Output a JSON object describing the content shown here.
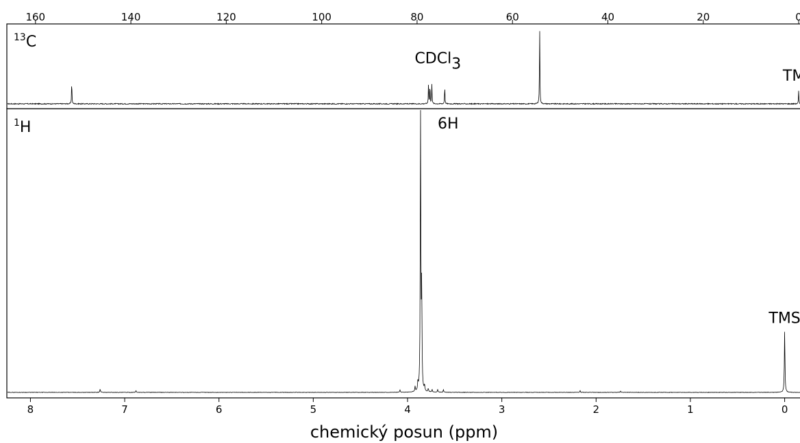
{
  "chart_data": [
    {
      "type": "line",
      "panel": "13C NMR",
      "nucleus_label": {
        "mass": "13",
        "symbol": "C"
      },
      "x_axis": {
        "position": "top",
        "ticks": [
          160,
          140,
          120,
          100,
          80,
          60,
          40,
          20,
          0
        ],
        "reversed": true,
        "range": [
          166,
          -2
        ]
      },
      "y_range": [
        0,
        1
      ],
      "grid": false,
      "baseline": 0.01,
      "peaks": [
        {
          "x": 152.4,
          "height": 0.3
        },
        {
          "x": 77.6,
          "height": 0.27
        },
        {
          "x": 77.3,
          "height": 0.25
        },
        {
          "x": 76.9,
          "height": 0.25
        },
        {
          "x": 74.2,
          "height": 0.23
        },
        {
          "x": 54.3,
          "height": 0.98
        },
        {
          "x": 0.0,
          "height": 0.17
        }
      ],
      "annotations": [
        {
          "main": "CDCl",
          "sub": "3",
          "x": 80.5,
          "y": 0.52
        },
        {
          "main": "TMS",
          "sub": "",
          "x": 0.0,
          "y": 0.3
        }
      ]
    },
    {
      "type": "line",
      "panel": "1H NMR",
      "nucleus_label": {
        "mass": "1",
        "symbol": "H"
      },
      "x_axis": {
        "position": "bottom",
        "ticks": [
          8,
          7,
          6,
          5,
          4,
          3,
          2,
          1,
          0
        ],
        "reversed": true,
        "range": [
          8.25,
          -0.25
        ],
        "label": "chemický posun (ppm)"
      },
      "y_range": [
        0,
        1
      ],
      "grid": false,
      "baseline": 0.005,
      "peaks": [
        {
          "x": 7.26,
          "height": 0.012
        },
        {
          "x": 6.88,
          "height": 0.006
        },
        {
          "x": 4.08,
          "height": 0.008
        },
        {
          "x": 3.92,
          "height": 0.018
        },
        {
          "x": 3.89,
          "height": 0.03
        },
        {
          "x": 3.862,
          "height": 0.99
        },
        {
          "x": 3.85,
          "height": 0.35
        },
        {
          "x": 3.82,
          "height": 0.02
        },
        {
          "x": 3.78,
          "height": 0.012
        },
        {
          "x": 3.74,
          "height": 0.01
        },
        {
          "x": 3.68,
          "height": 0.01
        },
        {
          "x": 3.62,
          "height": 0.01
        },
        {
          "x": 2.17,
          "height": 0.006
        },
        {
          "x": 1.74,
          "height": 0.004
        },
        {
          "x": 0.0,
          "height": 0.22
        }
      ],
      "annotations": [
        {
          "main": "6H",
          "sub": "",
          "x": 3.68,
          "y": 0.935
        },
        {
          "main": "TMS",
          "sub": "",
          "x": 0.0,
          "y": 0.25
        }
      ]
    }
  ]
}
